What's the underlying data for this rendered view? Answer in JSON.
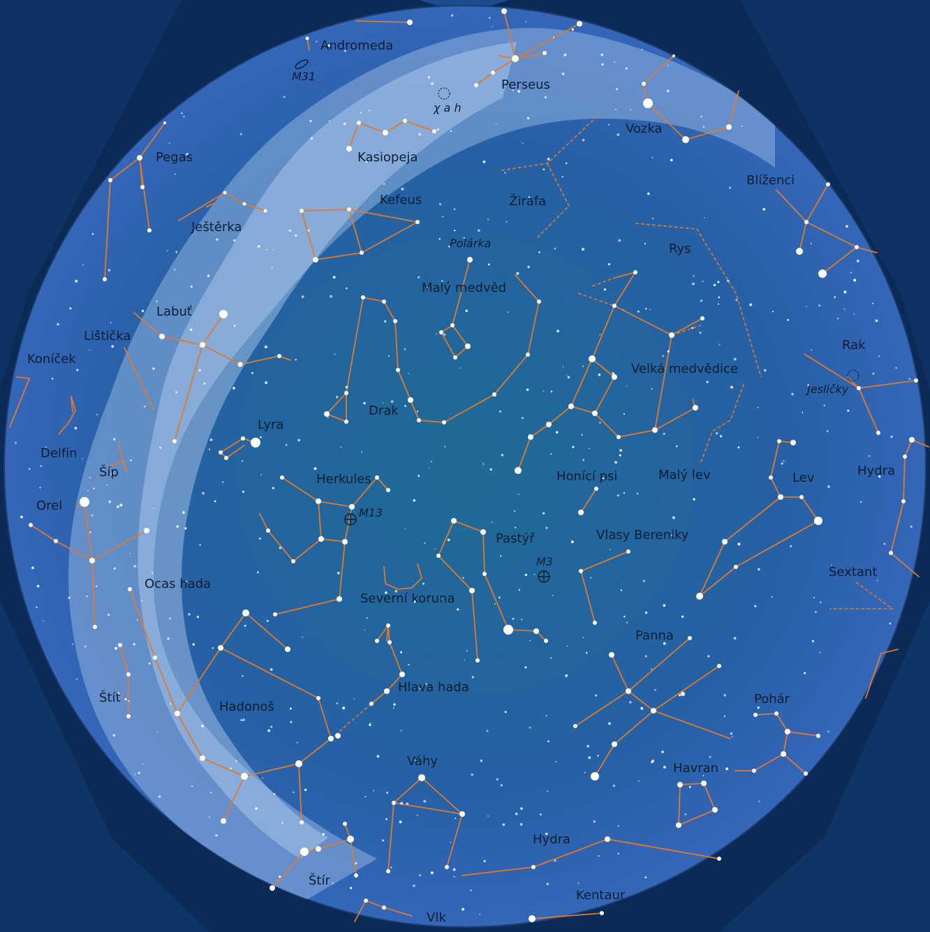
{
  "colors": {
    "background": "#0b2a55",
    "sky_center": "#1f6b95",
    "sky_edge": "#2f5fb0",
    "milky_way": "#a9c6ea",
    "constellation_line": "#e07a2e",
    "star": "#ffffff",
    "label": "#0d1e33"
  },
  "constellations": {
    "andromeda": "Andromeda",
    "perseus": "Perseus",
    "vozka": "Vozka",
    "kasiopeja": "Kasiopeja",
    "pegas": "Pegas",
    "zirafa": "Žirafa",
    "blizenci": "Blíženci",
    "kefeus": "Kefeus",
    "jesterka": "Ještěrka",
    "rys": "Rys",
    "maly_medved": "Malý medvěd",
    "labut": "Labuť",
    "listicka": "Lištička",
    "konicek": "Koníček",
    "rak": "Rak",
    "velka_medvedice": "Velká medvědice",
    "drak": "Drak",
    "lyra": "Lyra",
    "delfin": "Delfín",
    "sip": "Šíp",
    "hydra_east": "Hydra",
    "lev": "Lev",
    "honici_psi": "Honící psi",
    "maly_lev": "Malý lev",
    "herkules": "Herkules",
    "orel": "Orel",
    "pastyr": "Pastýř",
    "vlasy_bereniky": "Vlasy Bereniky",
    "sextant": "Sextant",
    "ocas_hada": "Ocas hada",
    "severni_koruna": "Severní koruna",
    "panna": "Panna",
    "stit": "Štít",
    "hlava_hada": "Hlava hada",
    "pohar": "Pohár",
    "hadonos": "Hadonoš",
    "vahy": "Váhy",
    "havran": "Havran",
    "hydra_south": "Hydra",
    "stir": "Štír",
    "kentaur": "Kentaur",
    "vlk": "Vlk"
  },
  "objects": {
    "m31": "M31",
    "chi_h": "χ a h",
    "polarka": "Polárka",
    "m13": "M13",
    "m3": "M3",
    "jeslicky": "Jesličky"
  }
}
